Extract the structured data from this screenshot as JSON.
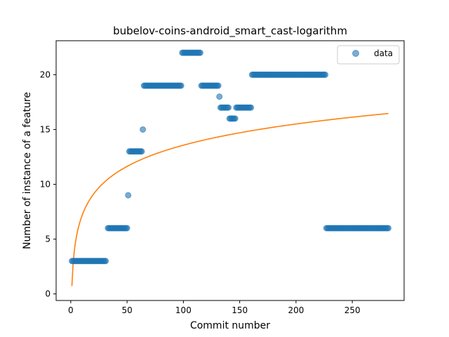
{
  "chart_data": {
    "type": "scatter",
    "title": "bubelov-coins-android_smart_cast-logarithm",
    "xlabel": "Commit number",
    "ylabel": "Number of instance of a feature",
    "xlim": [
      -13,
      296
    ],
    "ylim": [
      -0.6,
      23.1
    ],
    "xticks": [
      0,
      50,
      100,
      150,
      200,
      250
    ],
    "yticks": [
      0,
      5,
      10,
      15,
      20
    ],
    "grid": false,
    "legend": {
      "position": "top-right",
      "entries": [
        "data"
      ]
    },
    "colors": {
      "data": "#1f77b4",
      "fit": "#ff7f0e"
    },
    "series": [
      {
        "name": "data",
        "kind": "points",
        "points": [
          [
            1,
            3
          ],
          [
            31,
            3
          ],
          [
            33,
            6
          ],
          [
            50,
            6
          ],
          [
            51,
            9
          ],
          [
            52,
            13
          ],
          [
            63,
            13
          ],
          [
            64,
            15
          ],
          [
            65,
            19
          ],
          [
            98,
            19
          ],
          [
            99,
            22
          ],
          [
            115,
            22
          ],
          [
            116,
            19
          ],
          [
            131,
            19
          ],
          [
            132,
            18
          ],
          [
            133,
            17
          ],
          [
            140,
            17
          ],
          [
            141,
            16
          ],
          [
            146,
            16
          ],
          [
            147,
            17
          ],
          [
            160,
            17
          ],
          [
            161,
            20
          ],
          [
            226,
            20
          ],
          [
            227,
            6
          ],
          [
            282,
            6
          ]
        ]
      },
      {
        "kind": "log-fit",
        "a": 0.72,
        "b": 2.79,
        "x_range": [
          1,
          282
        ]
      }
    ]
  }
}
